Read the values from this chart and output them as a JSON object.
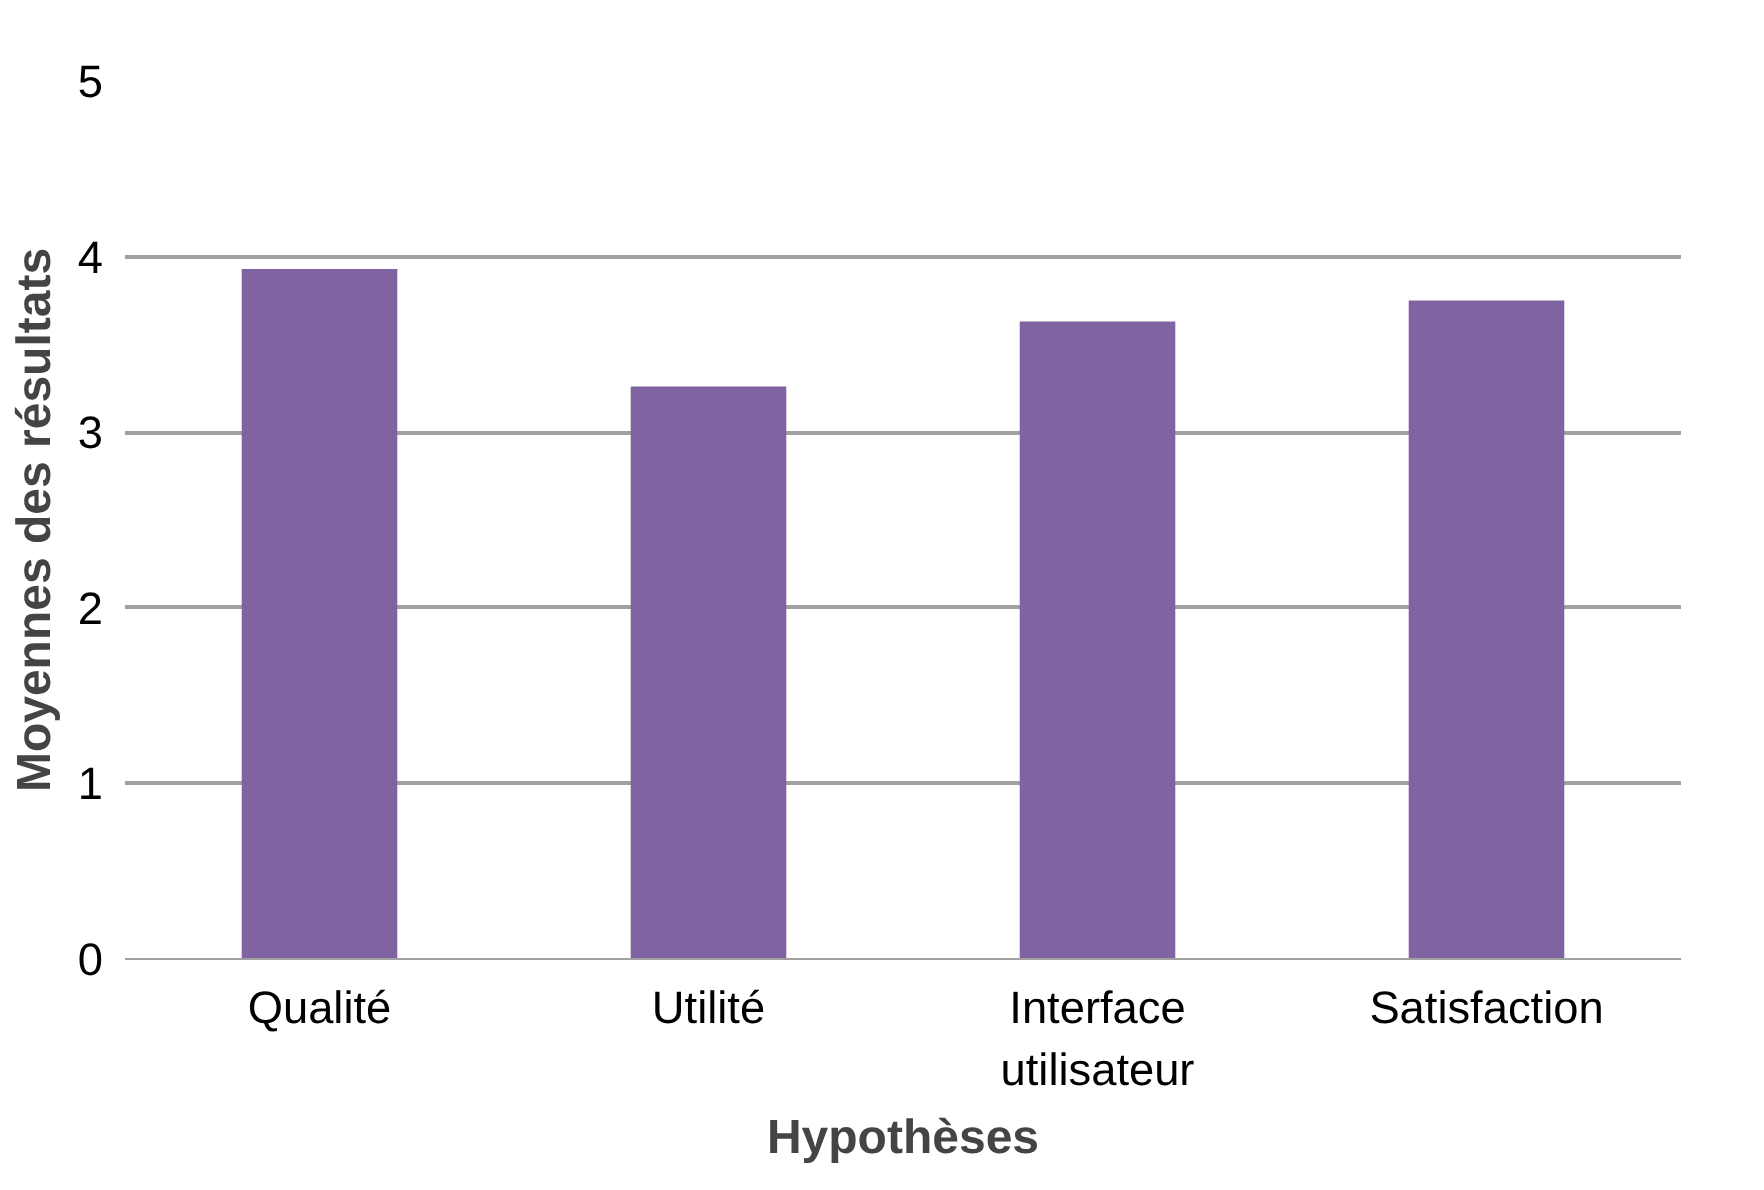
{
  "chart_data": {
    "type": "bar",
    "xlabel": "Hypothèses",
    "ylabel": "Moyennes des résultats",
    "categories": [
      "Qualité",
      "Utilité",
      "Interface utilisateur",
      "Satisfaction"
    ],
    "values": [
      3.93,
      3.26,
      3.63,
      3.75
    ],
    "color": "#8064a2",
    "ylim": [
      0,
      5
    ],
    "yticks": [
      0,
      1,
      2,
      3,
      4,
      5
    ],
    "grid": "y"
  }
}
